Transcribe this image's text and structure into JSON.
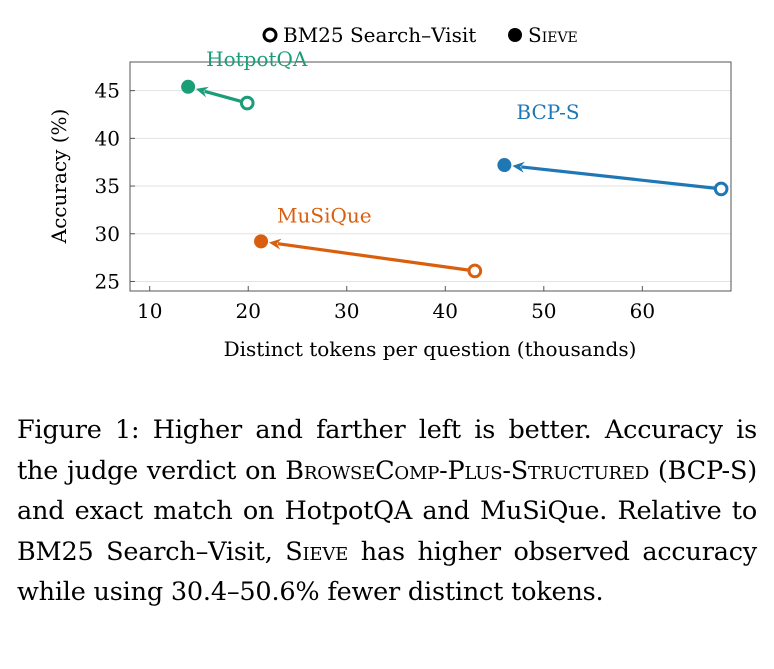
{
  "chart_data": {
    "type": "scatter",
    "xlabel": "Distinct tokens per question (thousands)",
    "ylabel": "Accuracy (%)",
    "xlim": [
      8,
      69
    ],
    "ylim": [
      24,
      48
    ],
    "xticks": [
      10,
      20,
      30,
      40,
      50,
      60
    ],
    "yticks": [
      25,
      30,
      35,
      40,
      45
    ],
    "grid": "horizontal",
    "legend": {
      "placement": "top-center",
      "entries": [
        {
          "label": "BM25 Search–Visit",
          "marker": "open-circle"
        },
        {
          "label": "Sieve",
          "marker": "filled-circle",
          "style": "small-caps"
        }
      ]
    },
    "series": [
      {
        "name": "HotpotQA",
        "color": "#1a9e77",
        "bm25": {
          "x": 19.9,
          "y": 43.7
        },
        "sieve": {
          "x": 13.9,
          "y": 45.4
        }
      },
      {
        "name": "BCP-S",
        "color": "#1f77b4",
        "bm25": {
          "x": 68.0,
          "y": 34.7
        },
        "sieve": {
          "x": 46.0,
          "y": 37.2
        }
      },
      {
        "name": "MuSiQue",
        "color": "#d95f0e",
        "bm25": {
          "x": 43.0,
          "y": 26.1
        },
        "sieve": {
          "x": 21.3,
          "y": 29.2
        }
      }
    ]
  },
  "caption": {
    "prefix": "Figure 1: Higher and farther left is better. Accuracy is the judge verdict on ",
    "dataset_name": "BrowseComp-Plus-Structured",
    "mid1": " (BCP-S) and exact match on HotpotQA and MuSiQue. Relative to BM25 Search–Visit, ",
    "method_name": "Sieve",
    "mid2": " has higher observed accuracy while using ",
    "range": "30.4–50.6%",
    "suffix": " fewer distinct tokens."
  }
}
